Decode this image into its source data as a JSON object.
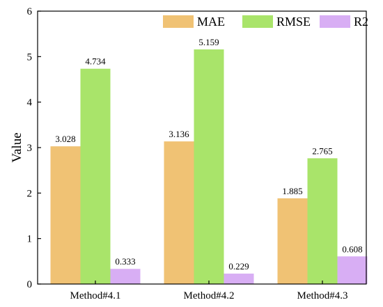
{
  "chart_data": {
    "type": "bar",
    "categories": [
      "Method#4.1",
      "Method#4.2",
      "Method#4.3"
    ],
    "series": [
      {
        "name": "MAE",
        "values": [
          3.028,
          3.136,
          1.885
        ],
        "labels": [
          "3.028",
          "3.136",
          "1.885"
        ],
        "color": "#F0C274"
      },
      {
        "name": "RMSE",
        "values": [
          4.734,
          5.159,
          2.765
        ],
        "labels": [
          "4.734",
          "5.159",
          "2.765"
        ],
        "color": "#A9E46A"
      },
      {
        "name": "R2",
        "values": [
          0.333,
          0.229,
          0.608
        ],
        "labels": [
          "0.333",
          "0.229",
          "0.608"
        ],
        "color": "#D8AEF4"
      }
    ],
    "ylabel": "Value",
    "xlabel": "",
    "ylim": [
      0,
      6
    ],
    "yticks": [
      0,
      1,
      2,
      3,
      4,
      5,
      6
    ],
    "legend": "top-right",
    "grid": false
  }
}
